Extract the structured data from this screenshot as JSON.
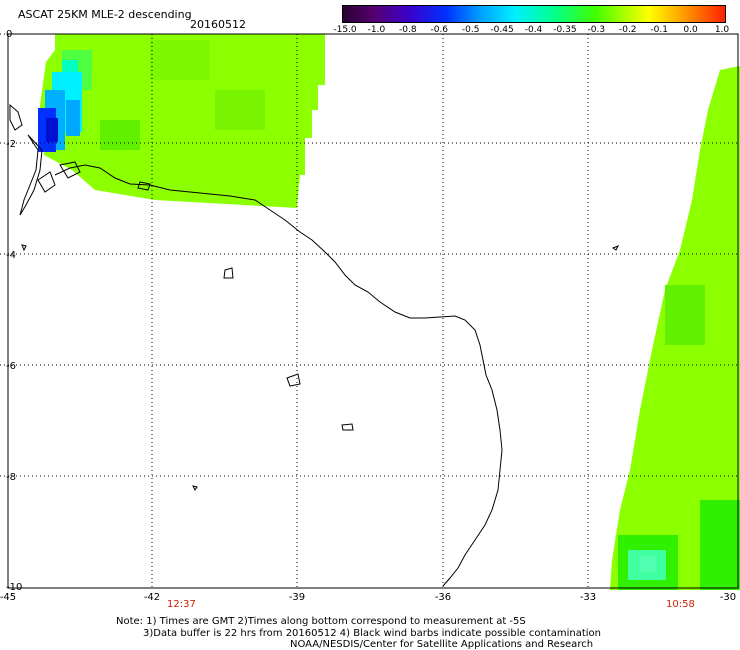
{
  "title": "ASCAT 25KM MLE-2 descending",
  "date": "20160512",
  "colorbar": {
    "labels": [
      "-15.0",
      "-1.0",
      "-0.8",
      "-0.6",
      "-0.5",
      "-0.45",
      "-0.4",
      "-0.35",
      "-0.3",
      "-0.2",
      "-0.1",
      "0.0",
      "1.0"
    ],
    "colors": [
      "#2a0030",
      "#55006e",
      "#3c00c8",
      "#0030ff",
      "#00a0ff",
      "#00f0ff",
      "#00ff90",
      "#40ff00",
      "#a0ff00",
      "#ffff00",
      "#ffc000",
      "#ff7000",
      "#ff2000"
    ]
  },
  "axes": {
    "x_ticks": [
      "-45",
      "-42",
      "-39",
      "-36",
      "-33",
      "-30"
    ],
    "y_ticks": [
      "0",
      "-2",
      "-4",
      "-6",
      "-8",
      "-10"
    ],
    "lon_range": [
      -45,
      -30
    ],
    "lat_range": [
      -10,
      0
    ]
  },
  "pass_times": [
    "12:37",
    "10:58"
  ],
  "notes": {
    "line1": "Note: 1) Times are GMT 2)Times along bottom correspond to measurement at -5S",
    "line2": "3)Data buffer is 22 hrs from 20160512 4) Black wind barbs indicate possible contamination",
    "line3": "NOAA/NESDIS/Center for Satellite Applications and Research"
  },
  "colors": {
    "swath_main": "#8cff00",
    "swath_green": "#30f000",
    "swath_cyan": "#00f0ff",
    "swath_blue": "#0030ff",
    "time_label": "#cc2200",
    "gridline": "#000000"
  }
}
